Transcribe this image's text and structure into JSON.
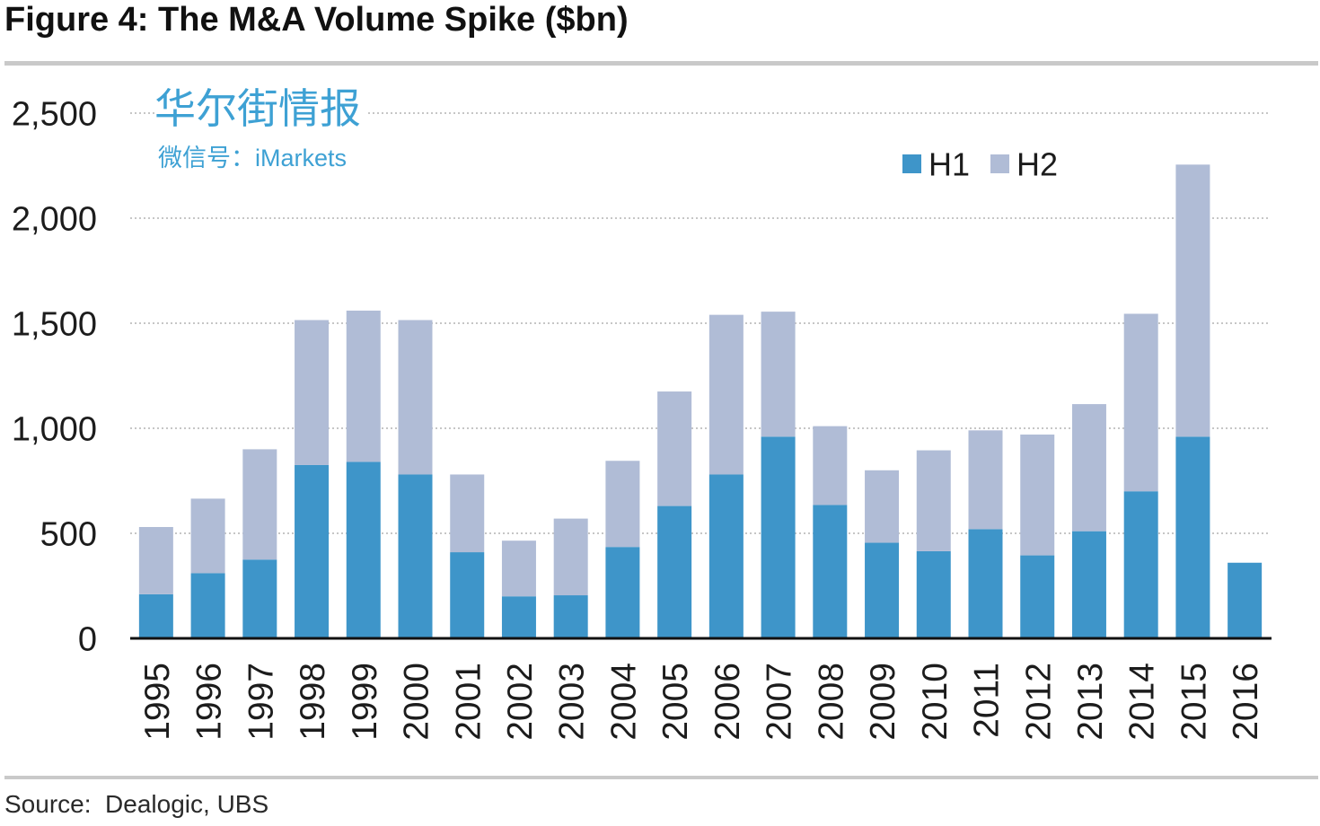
{
  "chart_data": {
    "type": "bar",
    "stacked": true,
    "title": "Figure 4: The M&A Volume Spike ($bn)",
    "categories": [
      "1995",
      "1996",
      "1997",
      "1998",
      "1999",
      "2000",
      "2001",
      "2002",
      "2003",
      "2004",
      "2005",
      "2006",
      "2007",
      "2008",
      "2009",
      "2010",
      "2011",
      "2012",
      "2013",
      "2014",
      "2015",
      "2016"
    ],
    "series": [
      {
        "name": "H1",
        "color": "#3e95c9",
        "values": [
          210,
          310,
          375,
          825,
          840,
          780,
          410,
          200,
          205,
          435,
          630,
          780,
          960,
          635,
          455,
          415,
          520,
          395,
          510,
          700,
          960,
          360
        ]
      },
      {
        "name": "H2",
        "color": "#b0bcd6",
        "values": [
          320,
          355,
          525,
          690,
          720,
          735,
          370,
          265,
          365,
          410,
          545,
          760,
          595,
          375,
          345,
          480,
          470,
          575,
          605,
          845,
          1295,
          null
        ]
      }
    ],
    "ylim": [
      0,
      2500
    ],
    "yticks": [
      0,
      500,
      1000,
      1500,
      2000,
      2500
    ],
    "ytick_labels": [
      "0",
      "500",
      "1,000",
      "1,500",
      "2,000",
      "2,500"
    ],
    "grid": true,
    "legend": "top-right"
  },
  "watermark": {
    "title": "华尔街情报",
    "subtitle": "微信号：iMarkets",
    "color": "#3ea1d4"
  },
  "footer": {
    "source": "Source:  Dealogic, UBS"
  }
}
